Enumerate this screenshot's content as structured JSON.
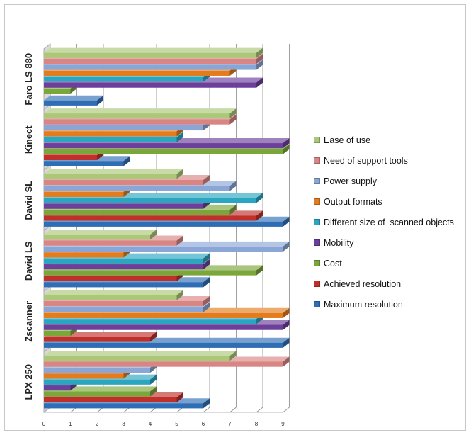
{
  "chart_data": {
    "type": "bar",
    "orientation": "horizontal",
    "style": "3d-clustered",
    "categories": [
      "LPX 250",
      "Zscanner",
      "David LS",
      "David SL",
      "Kinect",
      "Faro LS 880"
    ],
    "xlim": [
      0,
      9
    ],
    "xticks": [
      0,
      1,
      2,
      3,
      4,
      5,
      6,
      7,
      8,
      9
    ],
    "grid": true,
    "legend_position": "right",
    "series": [
      {
        "name": "Maximum resolution",
        "color": "#2f6eb5",
        "values": [
          6,
          9,
          6,
          9,
          3,
          2
        ]
      },
      {
        "name": "Achieved resolution",
        "color": "#c0302b",
        "values": [
          5,
          4,
          5,
          8,
          2,
          0
        ]
      },
      {
        "name": "Cost",
        "color": "#7aa63a",
        "values": [
          4,
          1,
          8,
          7,
          9,
          1
        ]
      },
      {
        "name": "Mobility",
        "color": "#6b3f9a",
        "values": [
          1,
          9,
          6,
          6,
          9,
          8
        ]
      },
      {
        "name": "Different size of  scanned objects",
        "color": "#2aa6c0",
        "values": [
          4,
          8,
          6,
          8,
          5,
          6
        ]
      },
      {
        "name": "Output formats",
        "color": "#e47c1e",
        "values": [
          3,
          9,
          3,
          3,
          5,
          7
        ]
      },
      {
        "name": "Power supply",
        "color": "#8aa6d6",
        "values": [
          4,
          6,
          9,
          7,
          6,
          8
        ]
      },
      {
        "name": "Need of support tools",
        "color": "#d98583",
        "values": [
          9,
          6,
          5,
          6,
          7,
          8
        ]
      },
      {
        "name": "Ease of use",
        "color": "#aac878",
        "values": [
          7,
          5,
          4,
          5,
          7,
          8
        ]
      }
    ]
  }
}
